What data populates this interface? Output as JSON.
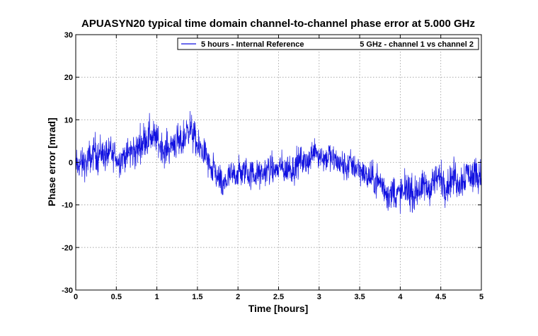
{
  "chart_data": {
    "type": "line",
    "title": "APUASYN20 typical time domain channel-to-channel phase error at 5.000 GHz",
    "xlabel": "Time [hours]",
    "ylabel": "Phase error [mrad]",
    "xlim": [
      0,
      5
    ],
    "ylim": [
      -30,
      30
    ],
    "x_ticks": [
      "0",
      "0.5",
      "1",
      "1.5",
      "2",
      "2.5",
      "3",
      "3.5",
      "4",
      "4.5",
      "5"
    ],
    "y_ticks": [
      "-30",
      "-20",
      "-10",
      "0",
      "10",
      "20",
      "30"
    ],
    "grid": true,
    "legend": {
      "placement": "top-right",
      "entries": [
        "5 hours - Internal Reference"
      ],
      "note": "5 GHz - channel 1 vs channel 2"
    },
    "series": [
      {
        "name": "5 hours - Internal Reference",
        "color": "#1010e0",
        "envelope": {
          "x": [
            0,
            0.25,
            0.5,
            0.75,
            0.9,
            1.1,
            1.3,
            1.4,
            1.6,
            1.8,
            2.0,
            2.5,
            3.0,
            3.5,
            4.0,
            4.5,
            5.0
          ],
          "center": [
            -1,
            2,
            1,
            3,
            6,
            3,
            5,
            8,
            1,
            -6,
            -2,
            -2,
            2,
            -2,
            -8,
            -4,
            -3
          ],
          "spread": [
            5,
            6,
            5,
            6,
            6,
            5,
            6,
            6,
            5,
            5,
            5,
            5,
            5,
            5,
            6,
            6,
            6
          ]
        },
        "sample_count": 1800
      }
    ]
  }
}
